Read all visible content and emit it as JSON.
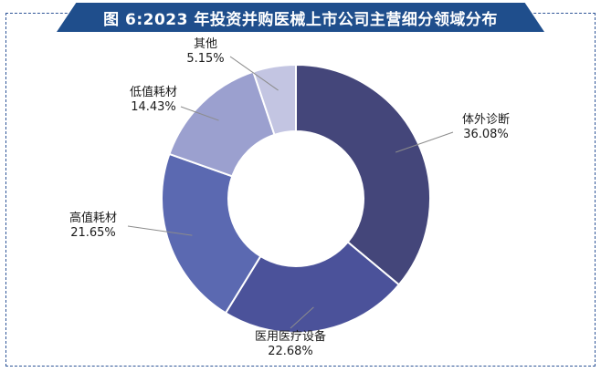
{
  "chart_data": {
    "type": "pie",
    "style": "donut",
    "title": "图 6:2023 年投资并购医械上市公司主营细分领域分布",
    "slices": [
      {
        "label": "体外诊断",
        "value": 36.08,
        "value_text": "36.08%",
        "color": "#44467a"
      },
      {
        "label": "医用医疗设备",
        "value": 22.68,
        "value_text": "22.68%",
        "color": "#4b529a"
      },
      {
        "label": "高值耗材",
        "value": 21.65,
        "value_text": "21.65%",
        "color": "#5b69b1"
      },
      {
        "label": "低值耗材",
        "value": 14.43,
        "value_text": "14.43%",
        "color": "#9ba0cf"
      },
      {
        "label": "其他",
        "value": 5.15,
        "value_text": "5.15%",
        "color": "#c3c5e2"
      }
    ]
  }
}
